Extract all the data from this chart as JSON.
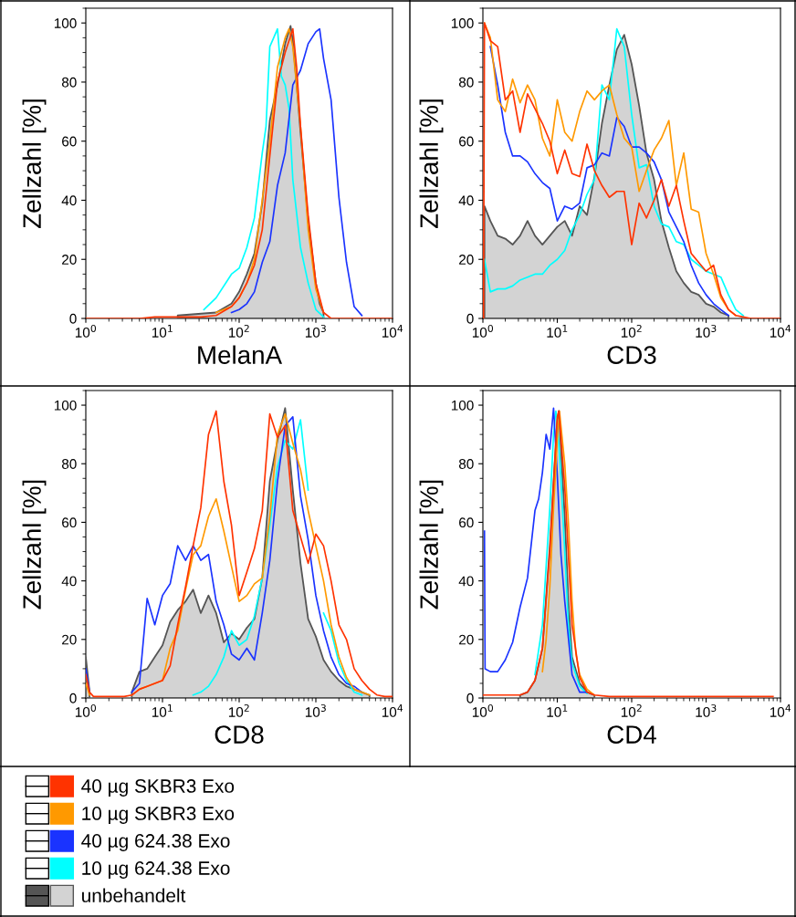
{
  "chart_data": [
    {
      "type": "line",
      "xlabel": "MelanA",
      "ylabel": "Zellzahl [%]",
      "log": "x",
      "xlim": [
        1,
        10000
      ],
      "ylim": [
        0,
        105
      ],
      "xticks": [
        {
          "value": 1,
          "label": "10$^{0}$"
        },
        {
          "value": 10,
          "label": "10$^{1}$"
        },
        {
          "value": 100,
          "label": "10$^{2}$"
        },
        {
          "value": 1000,
          "label": "10$^{3}$"
        },
        {
          "value": 10000,
          "label": "10$^{4}$"
        }
      ],
      "yticks": [
        0,
        20,
        40,
        60,
        80,
        100
      ],
      "series": [
        {
          "color": "#ff3300",
          "x": [
            1,
            5.01,
            7.94,
            12.6,
            31.6,
            50.1,
            79.4,
            100,
            126,
            158,
            200,
            251,
            316,
            398,
            501,
            562,
            631,
            794,
            1000,
            1260,
            1580,
            10000
          ],
          "values": [
            0,
            0,
            0.5,
            0.5,
            0.5,
            1,
            4,
            7,
            12,
            18,
            30,
            55,
            80,
            90,
            98,
            85,
            65,
            35,
            12,
            2,
            0,
            0
          ]
        },
        {
          "color": "#ff9900",
          "x": [
            50.1,
            79.4,
            100,
            126,
            158,
            200,
            251,
            316,
            398,
            447,
            501,
            631,
            794,
            1000,
            1260
          ],
          "values": [
            2,
            4,
            7,
            12,
            20,
            40,
            60,
            85,
            95,
            98,
            92,
            65,
            30,
            10,
            2
          ]
        },
        {
          "color": "#1a33ff",
          "x": [
            79.4,
            100,
            126,
            158,
            200,
            251,
            316,
            398,
            501,
            631,
            794,
            1000,
            1120,
            1260,
            1580,
            2000,
            2510,
            3160,
            3980
          ],
          "values": [
            2,
            3,
            5,
            9,
            19,
            26,
            45,
            56,
            79,
            84,
            93,
            97,
            98,
            88,
            74,
            41,
            19,
            4,
            1
          ]
        },
        {
          "color": "#00ffff",
          "x": [
            34.7,
            50.1,
            79.4,
            100,
            126,
            158,
            200,
            224,
            251,
            282,
            316,
            355,
            398,
            447,
            501,
            631,
            794,
            1000,
            1260
          ],
          "values": [
            3,
            7,
            15,
            17,
            24,
            34,
            56,
            65,
            92,
            95,
            98,
            82,
            79,
            71,
            47,
            24,
            12,
            3,
            0.5
          ]
        },
        {
          "type": "area",
          "color": "#d3d3d3",
          "x": [
            15.8,
            50.1,
            79.4,
            100,
            126,
            158,
            200,
            251,
            316,
            398,
            468,
            501,
            562,
            631,
            794,
            1000,
            1120,
            1260
          ],
          "values": [
            1,
            2,
            5,
            9,
            15,
            22,
            39,
            67,
            79,
            93,
            99,
            94,
            79,
            63,
            33,
            12,
            5,
            2
          ]
        }
      ]
    },
    {
      "type": "line",
      "xlabel": "CD3",
      "ylabel": "Zellzahl [%]",
      "log": "x",
      "xlim": [
        1,
        10000
      ],
      "ylim": [
        0,
        105
      ],
      "xticks": [
        {
          "value": 1,
          "label": "10$^{0}$"
        },
        {
          "value": 10,
          "label": "10$^{1}$"
        },
        {
          "value": 100,
          "label": "10$^{2}$"
        },
        {
          "value": 1000,
          "label": "10$^{3}$"
        },
        {
          "value": 10000,
          "label": "10$^{4}$"
        }
      ],
      "yticks": [
        0,
        20,
        40,
        60,
        80,
        100
      ],
      "x": [
        1.05,
        1.26,
        1.58,
        2,
        2.51,
        3.16,
        3.98,
        5.01,
        6.31,
        7.94,
        10,
        12.6,
        15.8,
        20,
        25.1,
        31.6,
        39.8,
        50.1,
        63.1,
        79.4,
        100,
        126,
        158,
        200,
        251,
        316,
        398,
        501,
        631,
        794,
        1000,
        1260,
        1580,
        2000,
        2510,
        3160
      ],
      "series": [
        {
          "color": "#ff3300",
          "x": [
            1.02,
            1.05,
            1.26,
            1.58,
            2,
            2.51,
            3.16,
            3.98,
            5.01,
            6.31,
            7.94,
            10,
            12.6,
            15.8,
            20,
            25.1,
            31.6,
            39.8,
            50.1,
            63.1,
            79.4,
            100,
            126,
            158,
            200,
            251,
            316,
            398,
            501,
            631,
            794,
            1000,
            1260,
            1580,
            2000,
            2510,
            3160,
            3980,
            5010,
            6310,
            7940,
            10000
          ],
          "values": [
            0,
            100,
            94,
            92,
            74,
            77,
            63,
            76,
            71,
            66,
            60,
            49,
            57,
            49,
            48,
            59,
            50,
            45,
            41,
            43,
            43,
            25,
            39,
            34,
            40,
            47,
            38,
            45,
            33,
            22,
            19,
            16,
            18,
            8,
            3,
            1,
            0.5,
            0,
            0,
            0,
            0,
            0
          ]
        },
        {
          "color": "#ff9900",
          "values": [
            100,
            95,
            74,
            70,
            81,
            73,
            79,
            74,
            61,
            55,
            74,
            63,
            60,
            70,
            77,
            74,
            77,
            79,
            69,
            61,
            58,
            43,
            50,
            57,
            61,
            67,
            45,
            56,
            37,
            36,
            22,
            15,
            7,
            3,
            1,
            null
          ]
        },
        {
          "color": "#1a33ff",
          "values": [
            null,
            92,
            79,
            63,
            55,
            55,
            53,
            49,
            46,
            44,
            33,
            38,
            37,
            39,
            51,
            52,
            56,
            55,
            68,
            65,
            58,
            58,
            56,
            53,
            47,
            36,
            31,
            26,
            18,
            12,
            8,
            5,
            3,
            1,
            null,
            null
          ]
        },
        {
          "color": "#00ffff",
          "values": [
            20,
            9,
            10,
            10,
            11,
            13,
            14,
            15,
            15,
            18,
            20,
            23,
            30,
            35,
            42,
            47,
            79,
            74,
            98,
            92,
            69,
            51,
            52,
            38,
            32,
            31,
            26,
            25,
            20,
            18,
            16,
            15,
            14,
            8,
            3,
            1
          ]
        },
        {
          "type": "area",
          "color": "#d3d3d3",
          "values": [
            38,
            33,
            28,
            27,
            25,
            28,
            33,
            28,
            25,
            28,
            31,
            33,
            28,
            38,
            35,
            48,
            66,
            79,
            91,
            96,
            86,
            72,
            56,
            47,
            33,
            24,
            16,
            12,
            9,
            8,
            5,
            4,
            2,
            1,
            null,
            null
          ]
        }
      ]
    },
    {
      "type": "line",
      "xlabel": "CD8",
      "ylabel": "Zellzahl [%]",
      "log": "x",
      "xlim": [
        1,
        10000
      ],
      "ylim": [
        0,
        105
      ],
      "legend": "bottom",
      "xticks": [
        {
          "value": 1,
          "label": "10$^{0}$"
        },
        {
          "value": 10,
          "label": "10$^{1}$"
        },
        {
          "value": 100,
          "label": "10$^{2}$"
        },
        {
          "value": 1000,
          "label": "10$^{3}$"
        },
        {
          "value": 10000,
          "label": "10$^{4}$"
        }
      ],
      "yticks": [
        0,
        20,
        40,
        60,
        80,
        100
      ],
      "x": [
        1,
        1.12,
        1.26,
        1.58,
        2,
        2.51,
        3.16,
        3.98,
        5.01,
        6.31,
        7.94,
        10,
        12.6,
        15.8,
        20,
        25.1,
        31.6,
        39.8,
        50.1,
        63.1,
        79.4,
        100,
        126,
        158,
        200,
        251,
        316,
        398,
        501,
        631,
        794,
        1000,
        1260,
        1580,
        2000,
        2510,
        3160,
        3980,
        5010,
        6310,
        7940,
        10000
      ],
      "series": [
        {
          "name": "40 µg SKBR3 Exo",
          "color": "#ff3300",
          "values": [
            8,
            2,
            0.5,
            0.5,
            0.5,
            0.5,
            0.5,
            1,
            3,
            4,
            5,
            6,
            11,
            25,
            38,
            52,
            65,
            90,
            98,
            74,
            59,
            35,
            43,
            51,
            64,
            97,
            89,
            93,
            64,
            55,
            46,
            56,
            52,
            40,
            25,
            20,
            10,
            6,
            3,
            1,
            0.5,
            0.5
          ]
        },
        {
          "name": "10 µg SKBR3 Exo",
          "color": "#ff9900",
          "values": [
            5,
            1,
            null,
            null,
            null,
            null,
            null,
            1,
            3,
            4,
            5,
            6,
            17,
            23,
            37,
            49,
            52,
            62,
            68,
            57,
            45,
            33,
            35,
            39,
            41,
            62,
            90,
            97,
            87,
            78,
            64,
            52,
            40,
            25,
            14,
            7,
            3,
            2,
            1,
            null,
            null,
            null
          ]
        },
        {
          "name": "40 µg 624.38 Exo",
          "color": "#1a33ff",
          "values": [
            10,
            2,
            null,
            null,
            null,
            null,
            null,
            2,
            5,
            34,
            25,
            35,
            39,
            52,
            47,
            52,
            47,
            49,
            33,
            25,
            15,
            13,
            17,
            13,
            29,
            47,
            74,
            93,
            96,
            69,
            54,
            35,
            23,
            14,
            8,
            5,
            4,
            2,
            null,
            null,
            null,
            null
          ]
        },
        {
          "name": "10 µg 624.38 Exo",
          "color": "#00ffff",
          "values": [
            null,
            null,
            null,
            null,
            null,
            null,
            null,
            null,
            null,
            null,
            null,
            null,
            null,
            null,
            null,
            1,
            2,
            4,
            8,
            14,
            23,
            18,
            20,
            28,
            41,
            59,
            79,
            88,
            85,
            95,
            71,
            null,
            29,
            23,
            12,
            6,
            2,
            1,
            null,
            null,
            null,
            null
          ]
        },
        {
          "name": "unbehandelt",
          "type": "area",
          "color": "#d3d3d3",
          "values": [
            14,
            2,
            null,
            null,
            null,
            null,
            null,
            2,
            9,
            10,
            14,
            18,
            26,
            30,
            33,
            37,
            29,
            35,
            29,
            19,
            22,
            20,
            24,
            27,
            41,
            74,
            88,
            99,
            71,
            46,
            27,
            21,
            13,
            9,
            6,
            4,
            3,
            2,
            1,
            null,
            null,
            null
          ]
        }
      ]
    },
    {
      "type": "line",
      "xlabel": "CD4",
      "ylabel": "Zellzahl [%]",
      "log": "x",
      "xlim": [
        1,
        10000
      ],
      "ylim": [
        0,
        105
      ],
      "xticks": [
        {
          "value": 1,
          "label": "10$^{0}$"
        },
        {
          "value": 10,
          "label": "10$^{1}$"
        },
        {
          "value": 100,
          "label": "10$^{2}$"
        },
        {
          "value": 1000,
          "label": "10$^{3}$"
        },
        {
          "value": 10000,
          "label": "10$^{4}$"
        }
      ],
      "yticks": [
        0,
        20,
        40,
        60,
        80,
        100
      ],
      "series": [
        {
          "color": "#ff3300",
          "x": [
            1,
            3.16,
            3.98,
            5.01,
            6.31,
            7.94,
            10,
            10.5,
            12.6,
            15.8,
            20,
            25.1,
            31.6,
            50.1,
            7940
          ],
          "values": [
            1,
            1,
            2,
            6,
            17,
            50,
            96,
            98,
            72,
            25,
            7,
            2,
            1,
            0.5,
            0.5
          ]
        },
        {
          "color": "#ff9900",
          "x": [
            6.31,
            7.08,
            7.94,
            8.91,
            10,
            10.7,
            12.6,
            14.1,
            15.8,
            17.8,
            20,
            25.1,
            31.6
          ],
          "values": [
            9,
            20,
            38,
            65,
            88,
            98,
            80,
            60,
            33,
            15,
            8,
            3,
            1
          ]
        },
        {
          "color": "#1a33ff",
          "x": [
            1.05,
            1.07,
            1.26,
            1.58,
            2,
            2.51,
            3.16,
            3.98,
            5.01,
            5.62,
            6.31,
            7.08,
            7.94,
            8.91,
            10,
            11.2,
            12.6,
            15.8,
            20,
            25.1
          ],
          "values": [
            57,
            10,
            9,
            9,
            13,
            19,
            31,
            41,
            64,
            68,
            77,
            90,
            85,
            99,
            76,
            49,
            33,
            8,
            2,
            2
          ]
        },
        {
          "color": "#00ffff",
          "x": [
            5.01,
            6.31,
            7.94,
            8.91,
            9.55,
            10,
            11.2,
            12.6,
            14.1,
            15.8,
            20,
            25.1
          ],
          "values": [
            8,
            25,
            65,
            90,
            98,
            95,
            75,
            50,
            25,
            12,
            4,
            1.5
          ]
        },
        {
          "type": "area",
          "color": "#d3d3d3",
          "x": [
            3.16,
            3.98,
            5.01,
            6.31,
            7.94,
            8.91,
            10,
            10.5,
            12.6,
            14.1,
            15.8,
            20,
            25.1,
            31.6
          ],
          "values": [
            1,
            2,
            6,
            17,
            52,
            74,
            95,
            98,
            62,
            33,
            14,
            5,
            2,
            1
          ]
        }
      ]
    }
  ]
}
